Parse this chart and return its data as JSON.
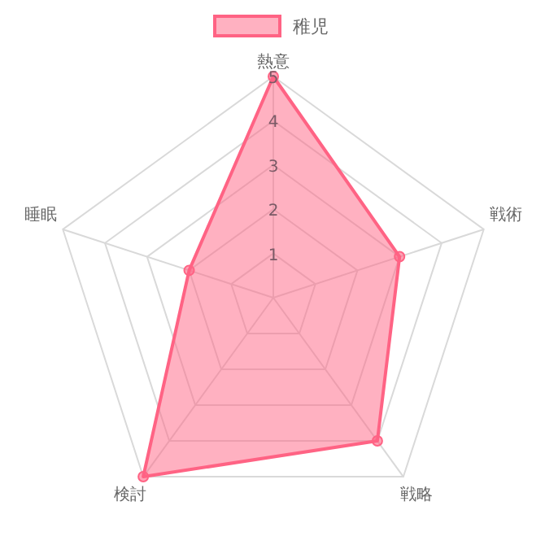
{
  "chart_data": {
    "type": "radar",
    "categories": [
      "熱意",
      "戦術",
      "戦略",
      "検討",
      "睡眠"
    ],
    "series": [
      {
        "name": "稚児",
        "color": "#ff6384",
        "values": [
          5,
          3,
          4,
          5,
          2
        ]
      }
    ],
    "ylim": [
      0,
      5
    ],
    "yticks": [
      1,
      2,
      3,
      4,
      5
    ],
    "legend": "top",
    "marker": "circle",
    "grid": true
  }
}
